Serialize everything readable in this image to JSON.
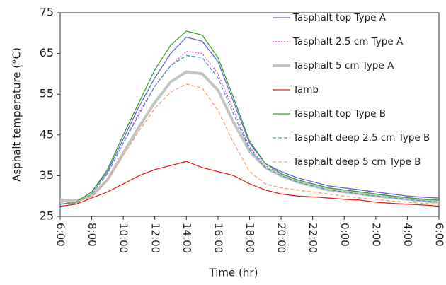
{
  "chart_data": {
    "type": "line",
    "xlabel": "Time (hr)",
    "ylabel": "Asphalt temperature (°C)",
    "x": [
      0,
      1,
      2,
      3,
      4,
      5,
      6,
      7,
      8,
      9,
      10,
      11,
      12,
      13,
      14,
      15,
      16,
      17,
      18,
      19,
      20,
      21,
      22,
      23,
      24
    ],
    "xlim": [
      0,
      24
    ],
    "xticks": [
      {
        "value": 0,
        "label": "6:00"
      },
      {
        "value": 2,
        "label": "8:00"
      },
      {
        "value": 4,
        "label": "10:00"
      },
      {
        "value": 6,
        "label": "12:00"
      },
      {
        "value": 8,
        "label": "14:00"
      },
      {
        "value": 10,
        "label": "16:00"
      },
      {
        "value": 12,
        "label": "18:00"
      },
      {
        "value": 14,
        "label": "20:00"
      },
      {
        "value": 16,
        "label": "22:00"
      },
      {
        "value": 18,
        "label": "0:00"
      },
      {
        "value": 20,
        "label": "2:00"
      },
      {
        "value": 22,
        "label": "4:00"
      },
      {
        "value": 24,
        "label": "6:00"
      }
    ],
    "ylim": [
      25,
      75
    ],
    "yticks": [
      25,
      35,
      45,
      55,
      65,
      75
    ],
    "legend": "upper right",
    "series": [
      {
        "name": "Tasphalt top Type A",
        "color": "#6666dd",
        "line_style": "solid",
        "values": [
          28,
          28.5,
          31,
          36,
          44,
          52,
          59,
          65,
          69,
          68,
          63,
          53,
          43,
          38,
          36,
          34.5,
          33.5,
          32.5,
          32,
          31.5,
          31,
          30.5,
          30,
          29.7,
          29.5
        ]
      },
      {
        "name": "Tasphalt 2.5 cm Type A",
        "color": "#e040e0",
        "line_style": "dotted",
        "values": [
          28,
          28.3,
          30.5,
          35.5,
          43,
          50.5,
          57,
          62,
          65.5,
          65,
          60,
          51,
          42,
          37.5,
          35.5,
          34,
          33,
          32,
          31.5,
          31,
          30.5,
          30,
          29.6,
          29.3,
          29
        ]
      },
      {
        "name": "Tasphalt 5 cm Type A",
        "color": "#c4c4c4",
        "line_style": "thick",
        "values": [
          29,
          28.8,
          30,
          34,
          40.5,
          47,
          53,
          58,
          60.5,
          60,
          56,
          48,
          41,
          37,
          35,
          33.5,
          32.5,
          31.5,
          31,
          30.5,
          30,
          29.6,
          29.2,
          28.8,
          28.5
        ]
      },
      {
        "name": "Tamb",
        "color": "#e82020",
        "line_style": "solid",
        "values": [
          27.5,
          28,
          29.5,
          31,
          33,
          35,
          36.5,
          37.5,
          38.5,
          37,
          36,
          35,
          33,
          31.5,
          30.5,
          30,
          29.8,
          29.5,
          29.2,
          29,
          28.5,
          28.2,
          28,
          27.8,
          27.5
        ]
      },
      {
        "name": "Tasphalt top Type B",
        "color": "#3f9f2f",
        "line_style": "solid",
        "values": [
          28,
          28.5,
          31,
          36.5,
          45,
          53,
          61,
          67,
          70.5,
          69.5,
          64,
          54,
          43.5,
          38,
          35.5,
          34,
          33,
          32,
          31.5,
          31,
          30.5,
          30,
          29.6,
          29.2,
          29
        ]
      },
      {
        "name": "Tasphalt deep 2.5 cm Type B",
        "color": "#3aa0b0",
        "line_style": "dashed",
        "values": [
          28,
          28.2,
          30.5,
          35.5,
          43,
          50,
          57,
          62,
          64.5,
          64,
          59,
          50,
          41.5,
          37,
          35,
          33.5,
          32.5,
          31.5,
          31,
          30.5,
          30,
          29.6,
          29.2,
          28.8,
          28.5
        ]
      },
      {
        "name": "Tasphalt deep 5 cm Type B",
        "color": "#f4a070",
        "line_style": "dashed",
        "values": [
          28.5,
          28.5,
          30,
          34,
          40,
          46,
          51.5,
          55.5,
          57.5,
          56.5,
          51,
          43,
          36,
          33,
          32,
          31.5,
          31,
          30.5,
          30,
          29.5,
          29.2,
          28.8,
          28.5,
          28.2,
          28
        ]
      }
    ]
  }
}
